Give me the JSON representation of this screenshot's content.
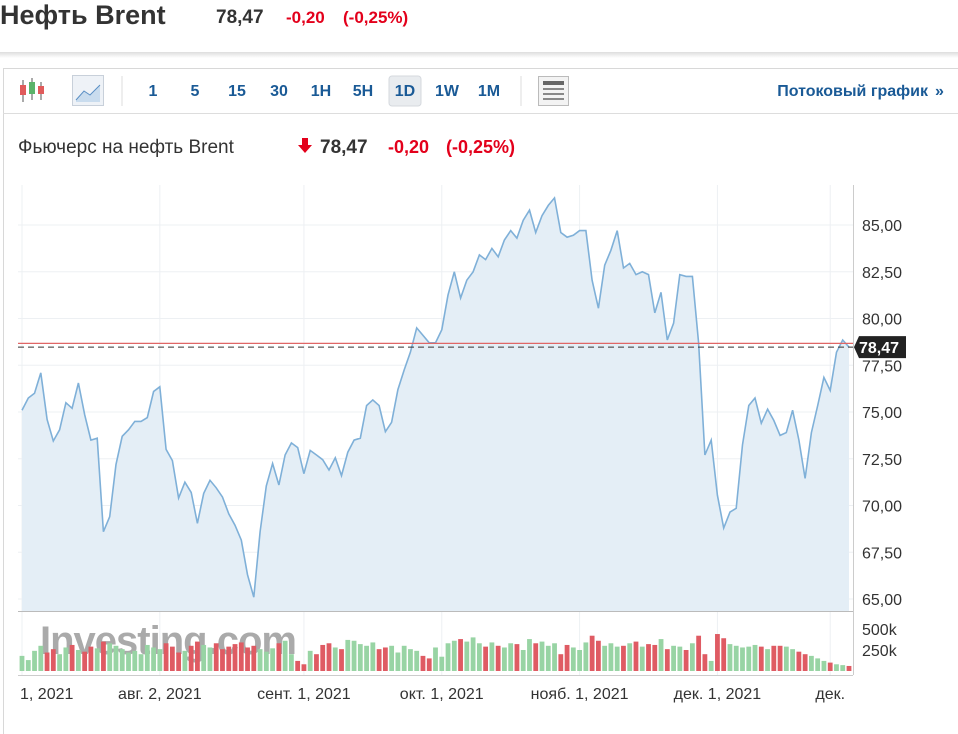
{
  "header": {
    "title": "Нефть Brent",
    "price": "78,47",
    "change": "-0,20",
    "change_pct": "(-0,25%)"
  },
  "toolbar": {
    "intervals": [
      "1",
      "5",
      "15",
      "30",
      "1H",
      "5H",
      "1D",
      "1W",
      "1M"
    ],
    "selected": 6,
    "stream_link": "Потоковый график",
    "stream_link_arrow": "»"
  },
  "chart_data": {
    "type": "area",
    "title": "Фьючерс на нефть Brent",
    "price": "78,47",
    "change": "-0,20",
    "change_pct": "(-0,25%)",
    "watermark": "Investing.com",
    "line_color": "#7fb0d8",
    "fill_color": "#e4eef6",
    "grid": true,
    "categories": [
      "1, 2021",
      null,
      null,
      null,
      null,
      null,
      null,
      null,
      null,
      null,
      null,
      null,
      null,
      null,
      null,
      null,
      null,
      null,
      null,
      null,
      null,
      null,
      "авг. 2, 2021",
      null,
      null,
      null,
      null,
      null,
      null,
      null,
      null,
      null,
      null,
      null,
      null,
      null,
      null,
      null,
      null,
      null,
      null,
      null,
      null,
      null,
      null,
      "сент. 1, 2021",
      null,
      null,
      null,
      null,
      null,
      null,
      null,
      null,
      null,
      null,
      null,
      null,
      null,
      null,
      null,
      null,
      null,
      null,
      null,
      null,
      null,
      "окт. 1, 2021",
      null,
      null,
      null,
      null,
      null,
      null,
      null,
      null,
      null,
      null,
      null,
      null,
      null,
      null,
      null,
      null,
      null,
      null,
      null,
      null,
      null,
      "нояб. 1, 2021",
      null,
      null,
      null,
      null,
      null,
      null,
      null,
      null,
      null,
      null,
      null,
      null,
      null,
      null,
      null,
      null,
      null,
      null,
      null,
      null,
      null,
      "дек. 1, 2021",
      null,
      null,
      null,
      null,
      null,
      null,
      null,
      null,
      null,
      null,
      null,
      null,
      null,
      null,
      null,
      null,
      null,
      "дек.",
      null,
      null,
      null
    ],
    "values": [
      75.1,
      75.75,
      76.0,
      77.1,
      74.6,
      73.45,
      74.05,
      75.5,
      75.2,
      76.55,
      74.85,
      73.5,
      73.6,
      68.6,
      69.4,
      72.2,
      73.7,
      74.05,
      74.5,
      74.5,
      74.7,
      76.1,
      76.35,
      73.0,
      72.4,
      70.4,
      71.25,
      70.7,
      69.05,
      70.65,
      71.35,
      70.95,
      70.45,
      69.55,
      68.95,
      68.15,
      66.3,
      65.1,
      68.6,
      71.05,
      72.25,
      71.1,
      72.7,
      73.35,
      73.1,
      71.7,
      72.95,
      72.7,
      72.45,
      71.9,
      72.55,
      71.6,
      72.85,
      73.5,
      73.6,
      75.35,
      75.65,
      75.35,
      73.95,
      74.45,
      76.2,
      77.25,
      78.2,
      79.5,
      79.1,
      78.7,
      78.7,
      79.4,
      81.25,
      82.5,
      81.1,
      82.05,
      82.5,
      83.4,
      83.15,
      83.75,
      83.3,
      84.2,
      84.7,
      84.3,
      85.25,
      85.8,
      84.6,
      85.5,
      86.05,
      86.45,
      84.6,
      84.35,
      84.45,
      84.7,
      84.7,
      82.05,
      80.55,
      82.85,
      83.65,
      84.7,
      82.7,
      82.95,
      82.35,
      82.5,
      82.35,
      80.3,
      81.4,
      78.85,
      79.75,
      82.35,
      82.25,
      82.25,
      78.7,
      72.7,
      73.5,
      70.55,
      68.8,
      69.65,
      69.85,
      73.25,
      75.35,
      75.75,
      74.4,
      75.15,
      74.55,
      73.75,
      73.9,
      75.1,
      73.5,
      71.45,
      73.9,
      75.35,
      76.85,
      76.15,
      78.2,
      78.85,
      78.47
    ],
    "last_price_label": "78,47",
    "reference_line": {
      "value": 78.67,
      "color": "#e06666"
    },
    "ylim": [
      64.36,
      87.14
    ],
    "yticks": [
      {
        "value": 65,
        "label": "65,00"
      },
      {
        "value": 67.5,
        "label": "67,50"
      },
      {
        "value": 70,
        "label": "70,00"
      },
      {
        "value": 72.5,
        "label": "72,50"
      },
      {
        "value": 75,
        "label": "75,00"
      },
      {
        "value": 77.5,
        "label": "77,50"
      },
      {
        "value": 80,
        "label": "80,00"
      },
      {
        "value": 82.5,
        "label": "82,50"
      },
      {
        "value": 85,
        "label": "85,00"
      }
    ],
    "volume": {
      "up_color": "#98d4a4",
      "down_color": "#df5b63",
      "ylim": [
        0,
        607
      ],
      "yticks": [
        {
          "value": 250,
          "label": "250k"
        },
        {
          "value": 500,
          "label": "500k"
        }
      ],
      "values": [
        180,
        130,
        240,
        300,
        220,
        260,
        200,
        280,
        310,
        250,
        230,
        290,
        270,
        350,
        330,
        300,
        260,
        220,
        240,
        200,
        310,
        280,
        260,
        330,
        290,
        220,
        240,
        300,
        350,
        310,
        280,
        330,
        260,
        290,
        320,
        340,
        280,
        300,
        260,
        230,
        270,
        330,
        360,
        200,
        120,
        80,
        240,
        200,
        310,
        330,
        280,
        260,
        370,
        360,
        320,
        300,
        340,
        260,
        280,
        300,
        220,
        300,
        260,
        240,
        180,
        150,
        280,
        170,
        330,
        360,
        380,
        350,
        400,
        330,
        290,
        340,
        300,
        280,
        330,
        320,
        250,
        380,
        330,
        350,
        300,
        330,
        200,
        310,
        280,
        250,
        340,
        420,
        360,
        300,
        330,
        290,
        300,
        330,
        350,
        290,
        320,
        310,
        380,
        260,
        300,
        290,
        250,
        330,
        420,
        200,
        120,
        440,
        390,
        320,
        300,
        280,
        290,
        310,
        290,
        260,
        300,
        300,
        290,
        260,
        230,
        200,
        180,
        150,
        120,
        100,
        80,
        70,
        60
      ]
    }
  }
}
